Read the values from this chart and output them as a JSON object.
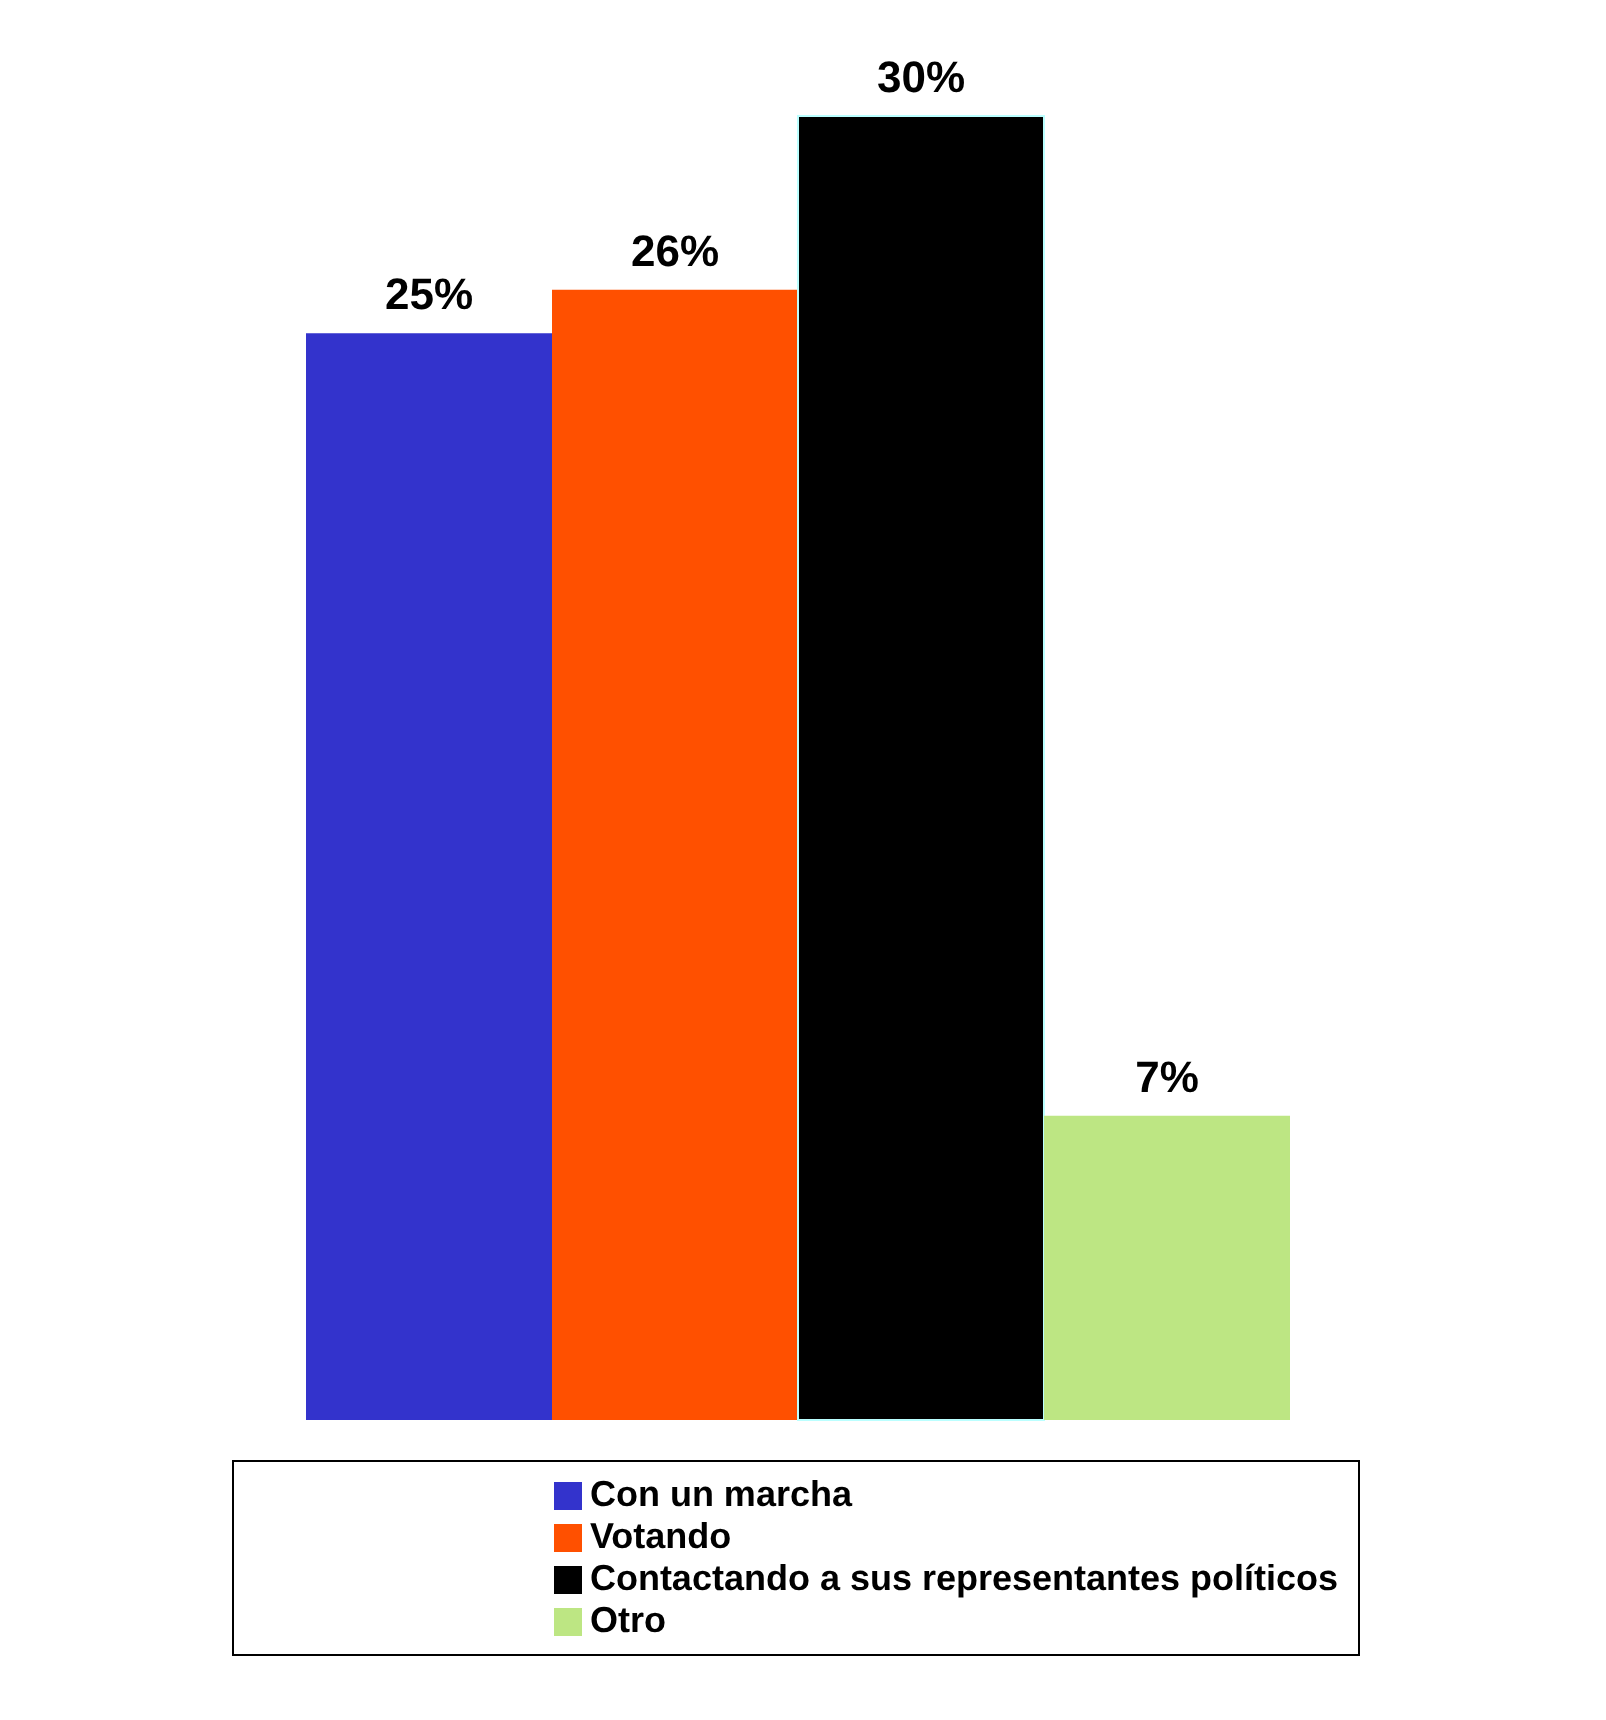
{
  "chart_data": {
    "type": "bar",
    "categories": [
      null
    ],
    "series": [
      {
        "name": "Con un marcha",
        "color": "#3333cc",
        "values": [
          25
        ],
        "value_labels": [
          "25%"
        ]
      },
      {
        "name": "Votando",
        "color": "#ff5000",
        "values": [
          26
        ],
        "value_labels": [
          "26%"
        ]
      },
      {
        "name": "Contactando a sus representantes políticos",
        "color": "#000000",
        "values": [
          30
        ],
        "value_labels": [
          "30%"
        ]
      },
      {
        "name": "Otro",
        "color": "#bde683",
        "values": [
          7
        ],
        "value_labels": [
          "7%"
        ]
      }
    ],
    "grid": false,
    "legend": "bottom"
  }
}
